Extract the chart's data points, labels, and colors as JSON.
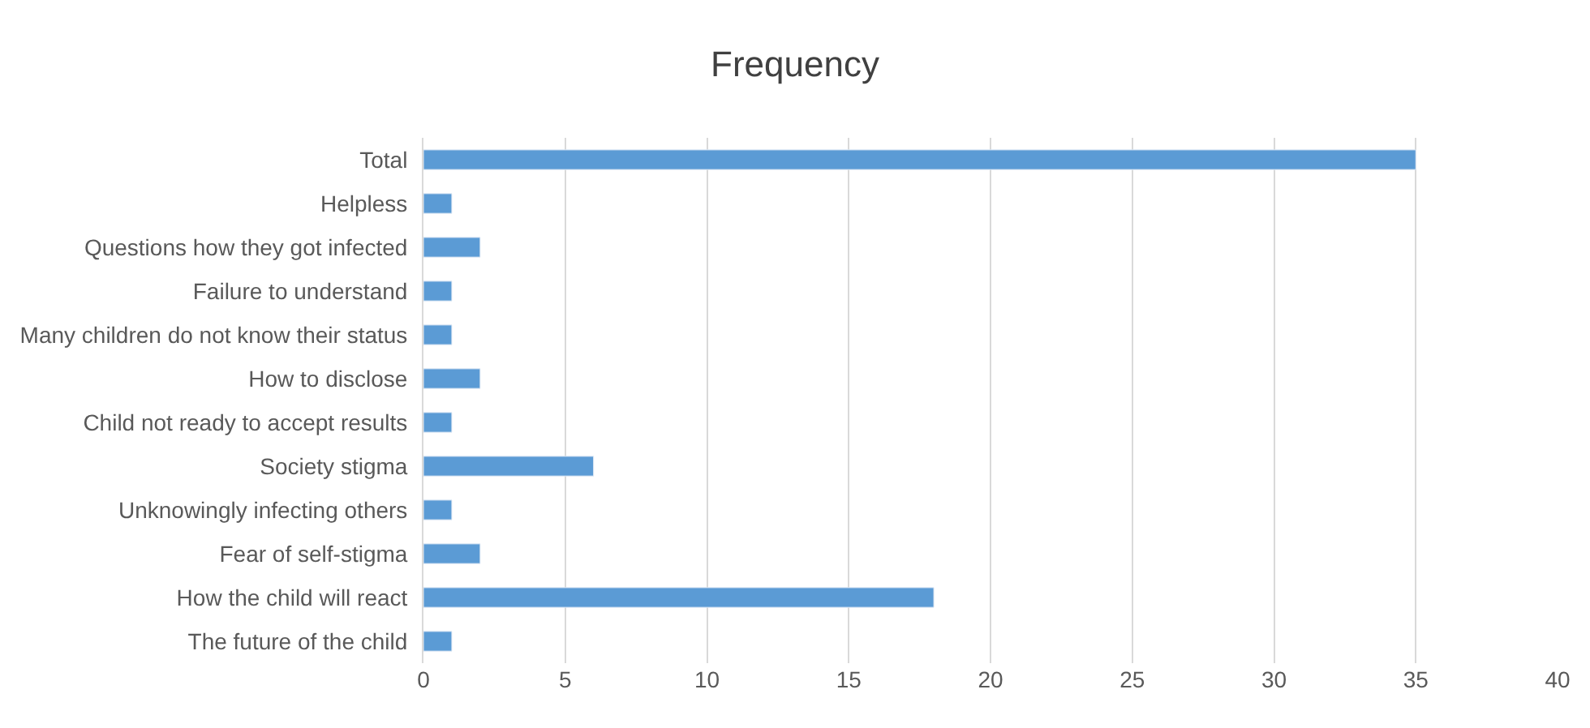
{
  "chart_data": {
    "type": "bar",
    "orientation": "horizontal",
    "title": "Frequency",
    "categories": [
      "Total",
      "Helpless",
      "Questions how they got infected",
      "Failure to understand",
      "Many children do not know their status",
      "How to disclose",
      "Child not ready to accept results",
      "Society stigma",
      "Unknowingly infecting others",
      "Fear of self-stigma",
      "How the child will react",
      "The future of the child"
    ],
    "values": [
      35,
      1,
      2,
      1,
      1,
      2,
      1,
      6,
      1,
      2,
      18,
      1
    ],
    "color": "#5b9bd5",
    "xlim": [
      0,
      40
    ],
    "xticks": [
      0,
      5,
      10,
      15,
      20,
      25,
      30,
      35,
      40
    ],
    "grid": "x",
    "legend": false
  }
}
